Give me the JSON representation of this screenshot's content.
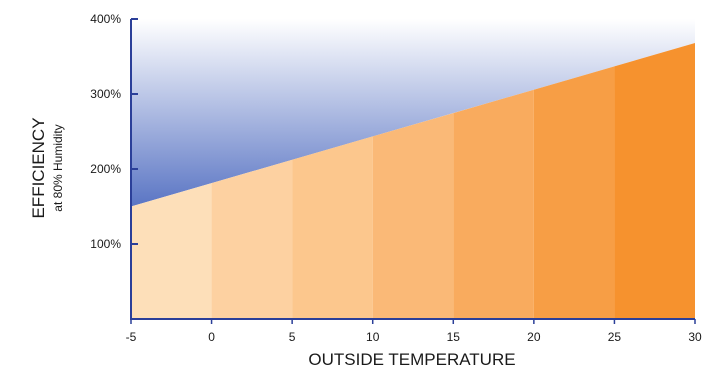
{
  "chart_data": {
    "type": "area",
    "x": [
      -5,
      30
    ],
    "values": [
      150,
      368
    ],
    "x_ticks": [
      "-5",
      "0",
      "5",
      "10",
      "15",
      "20",
      "25",
      "30"
    ],
    "y_ticks": [
      "100%",
      "200%",
      "300%",
      "400%"
    ],
    "xlim": [
      -5,
      30
    ],
    "ylim": [
      0,
      400
    ],
    "xlabel": "OUTSIDE TEMPERATURE",
    "ylabel": "EFFICIENCY",
    "ylabel_sub": "at 80% Humidity",
    "grid": false,
    "band_colors": [
      "#fddfb9",
      "#fdd1a1",
      "#fcc78d",
      "#fab977",
      "#f9ab5e",
      "#f79e45",
      "#f6922e"
    ],
    "upper_gradient": {
      "top": "#ffffff",
      "bottom": "#5a75c4"
    },
    "axis_color": "#2b3f99"
  }
}
